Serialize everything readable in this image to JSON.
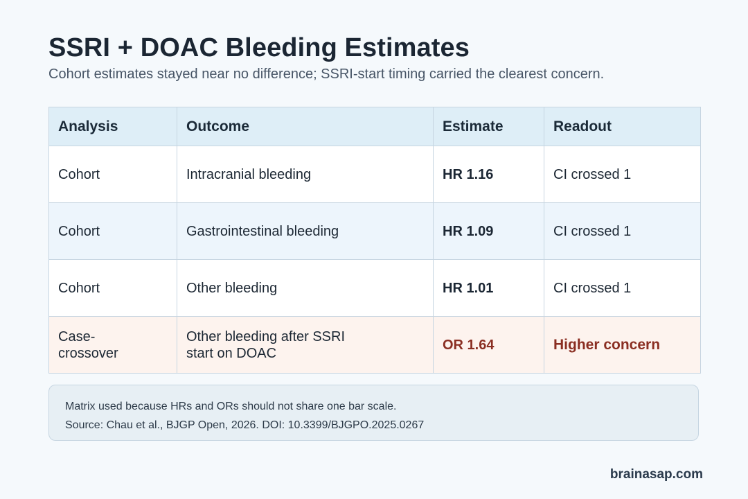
{
  "title": "SSRI + DOAC Bleeding Estimates",
  "subtitle": "Cohort estimates stayed near no difference; SSRI-start timing carried the clearest concern.",
  "chart_data": {
    "type": "table",
    "columns": [
      "Analysis",
      "Outcome",
      "Estimate",
      "Readout"
    ],
    "rows": [
      {
        "analysis": "Cohort",
        "outcome": "Intracranial bleeding",
        "estimate": "HR 1.16",
        "readout": "CI crossed 1",
        "highlight": false
      },
      {
        "analysis": "Cohort",
        "outcome": "Gastrointestinal bleeding",
        "estimate": "HR 1.09",
        "readout": "CI crossed 1",
        "highlight": false
      },
      {
        "analysis": "Cohort",
        "outcome": "Other bleeding",
        "estimate": "HR 1.01",
        "readout": "CI crossed 1",
        "highlight": false
      },
      {
        "analysis": "Case-crossover",
        "outcome": "Other bleeding after SSRI start on DOAC",
        "estimate": "OR 1.64",
        "readout": "Higher concern",
        "highlight": true
      }
    ],
    "colors": {
      "header_bg": "#deeef7",
      "highlight_bg": "#fdf3ee",
      "highlight_text": "#8a2e22"
    }
  },
  "notes": [
    "Matrix used because HRs and ORs should not share one bar scale.",
    "Source: Chau et al., BJGP Open, 2026. DOI: 10.3399/BJGPO.2025.0267"
  ],
  "brand": "brainasap.com"
}
